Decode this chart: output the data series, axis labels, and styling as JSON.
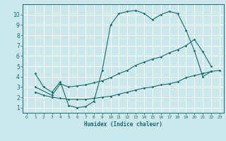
{
  "title": "",
  "xlabel": "Humidex (Indice chaleur)",
  "bg_color": "#cce8ed",
  "grid_color": "#ffffff",
  "line_color": "#1a6b6b",
  "xlim": [
    -0.5,
    23.5
  ],
  "ylim": [
    0.5,
    11.0
  ],
  "yticks": [
    1,
    2,
    3,
    4,
    5,
    6,
    7,
    8,
    9,
    10
  ],
  "xticks": [
    0,
    1,
    2,
    3,
    4,
    5,
    6,
    7,
    8,
    9,
    10,
    11,
    12,
    13,
    14,
    15,
    16,
    17,
    18,
    19,
    20,
    21,
    22,
    23
  ],
  "line1_x": [
    1,
    2,
    3,
    4,
    5,
    6,
    7,
    8,
    9,
    10,
    11,
    12,
    13,
    14,
    15,
    16,
    17,
    18,
    19,
    20,
    21,
    22
  ],
  "line1_y": [
    4.3,
    3.0,
    2.5,
    3.5,
    1.2,
    1.0,
    1.1,
    1.6,
    4.6,
    9.0,
    10.1,
    10.3,
    10.4,
    10.1,
    9.5,
    10.0,
    10.3,
    10.1,
    8.5,
    6.5,
    4.0,
    4.5
  ],
  "line2_x": [
    1,
    3,
    4,
    5,
    6,
    7,
    8,
    9,
    10,
    11,
    12,
    13,
    14,
    15,
    16,
    17,
    18,
    19,
    20,
    21,
    22
  ],
  "line2_y": [
    3.0,
    2.2,
    3.3,
    3.0,
    3.1,
    3.2,
    3.4,
    3.6,
    3.9,
    4.3,
    4.6,
    5.1,
    5.4,
    5.7,
    5.9,
    6.3,
    6.6,
    7.0,
    7.6,
    6.4,
    5.0
  ],
  "line3_x": [
    1,
    2,
    3,
    4,
    5,
    6,
    7,
    8,
    9,
    10,
    11,
    12,
    13,
    14,
    15,
    16,
    17,
    18,
    19,
    20,
    21,
    22,
    23
  ],
  "line3_y": [
    2.5,
    2.2,
    2.0,
    1.9,
    1.8,
    1.8,
    1.8,
    1.9,
    2.0,
    2.1,
    2.3,
    2.5,
    2.7,
    2.9,
    3.0,
    3.2,
    3.3,
    3.5,
    3.9,
    4.1,
    4.3,
    4.5,
    4.6
  ]
}
